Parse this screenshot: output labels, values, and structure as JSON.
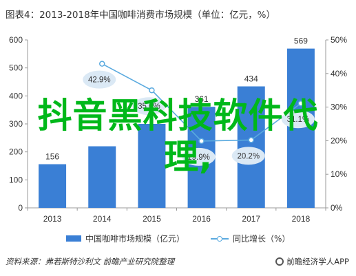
{
  "title": "图表4：2013-2018年中国咖啡消费市场规模（单位：亿元，%）",
  "chart_data": {
    "type": "bar",
    "categories": [
      "2013",
      "2014",
      "2015",
      "2016",
      "2017",
      "2018"
    ],
    "series": [
      {
        "name": "中国咖啡市场规模（亿元）",
        "type": "bar",
        "axis": "left",
        "values": [
          156,
          220,
          300,
          361,
          434,
          569
        ],
        "labels": [
          "156",
          "",
          "",
          "361",
          "434",
          "569"
        ],
        "color": "#3a7fd5"
      },
      {
        "name": "同比增长（%）",
        "type": "line",
        "axis": "right",
        "values": [
          null,
          42.9,
          35.0,
          19.9,
          20.2,
          31.1
        ],
        "labels": [
          "",
          "42.9%",
          "35.0%",
          "19.9%",
          "20.2%",
          "31.1%"
        ],
        "color": "#5aaadf"
      }
    ],
    "y_left": {
      "ylim": [
        0,
        600
      ],
      "ticks": [
        "0",
        "100",
        "200",
        "300",
        "400",
        "500",
        "600"
      ]
    },
    "y_right": {
      "ylim": [
        0,
        50
      ],
      "ticks": [
        "0%",
        "10%",
        "20%",
        "30%",
        "40%",
        "50%"
      ]
    },
    "grid": false,
    "legend_position": "bottom"
  },
  "legend": {
    "bar_label": "中国咖啡市场规模（亿元）",
    "line_label": "同比增长（%）"
  },
  "source": "资料来源：弗若斯特沙利文 前瞻产业研究院整理",
  "brand": "前瞻经济学人APP",
  "overlay": {
    "line1": "抖音黑科技软件代",
    "line2": "理,"
  }
}
